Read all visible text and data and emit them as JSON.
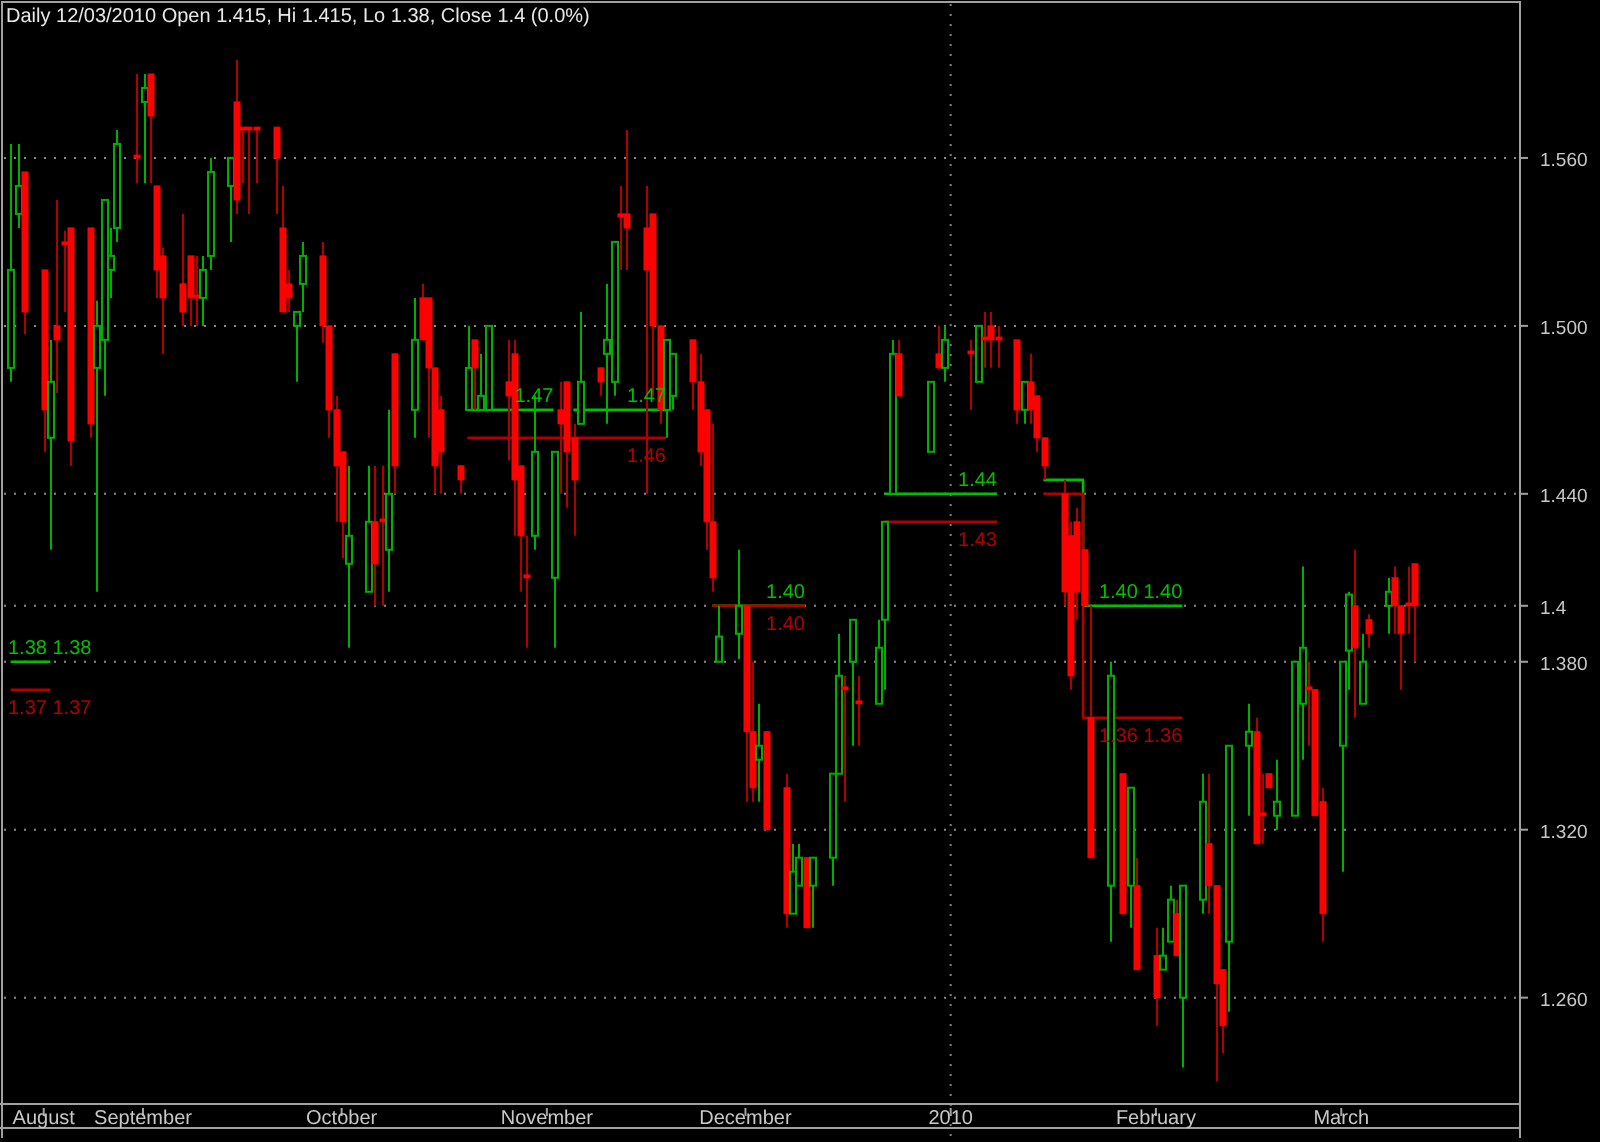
{
  "chart_data": {
    "type": "candlestick",
    "title": "Daily 12/03/2010 Open 1.415, Hi 1.415, Lo 1.38, Close 1.4 (0.0%)",
    "x": [
      "2009-08-12",
      "2009-08-13",
      "2009-08-14",
      "2009-08-17",
      "2009-08-18",
      "2009-08-19",
      "2009-08-20",
      "2009-08-21",
      "2009-08-24",
      "2009-08-25",
      "2009-08-26",
      "2009-08-27",
      "2009-08-28",
      "2009-08-31",
      "2009-09-01",
      "2009-09-02",
      "2009-09-03",
      "2009-09-04",
      "2009-09-07",
      "2009-09-08",
      "2009-09-09",
      "2009-09-10",
      "2009-09-11",
      "2009-09-14",
      "2009-09-15",
      "2009-09-16",
      "2009-09-17",
      "2009-09-18",
      "2009-09-21",
      "2009-09-22",
      "2009-09-23",
      "2009-09-24",
      "2009-09-25",
      "2009-09-28",
      "2009-09-29",
      "2009-09-30",
      "2009-10-01",
      "2009-10-02",
      "2009-10-05",
      "2009-10-06",
      "2009-10-07",
      "2009-10-08",
      "2009-10-09",
      "2009-10-12",
      "2009-10-13",
      "2009-10-14",
      "2009-10-15",
      "2009-10-16",
      "2009-10-19",
      "2009-10-20",
      "2009-10-21",
      "2009-10-22",
      "2009-10-23",
      "2009-10-26",
      "2009-10-27",
      "2009-10-28",
      "2009-10-29",
      "2009-10-30",
      "2009-11-02",
      "2009-11-03",
      "2009-11-04",
      "2009-11-05",
      "2009-11-06",
      "2009-11-09",
      "2009-11-10",
      "2009-11-11",
      "2009-11-12",
      "2009-11-13",
      "2009-11-16",
      "2009-11-17",
      "2009-11-18",
      "2009-11-19",
      "2009-11-20",
      "2009-11-23",
      "2009-11-24",
      "2009-11-25",
      "2009-11-26",
      "2009-11-27",
      "2009-11-30",
      "2009-12-01",
      "2009-12-02",
      "2009-12-03",
      "2009-12-04",
      "2009-12-07",
      "2009-12-08",
      "2009-12-09",
      "2009-12-10",
      "2009-12-11",
      "2009-12-14",
      "2009-12-15",
      "2009-12-16",
      "2009-12-17",
      "2009-12-18",
      "2009-12-21",
      "2009-12-22",
      "2009-12-23",
      "2009-12-24",
      "2009-12-29",
      "2009-12-30",
      "2009-12-31",
      "2010-01-04",
      "2010-01-05",
      "2010-01-06",
      "2010-01-07",
      "2010-01-08",
      "2010-01-11",
      "2010-01-12",
      "2010-01-13",
      "2010-01-14",
      "2010-01-15",
      "2010-01-18",
      "2010-01-19",
      "2010-01-20",
      "2010-01-21",
      "2010-01-22",
      "2010-01-25",
      "2010-01-27",
      "2010-01-28",
      "2010-01-29",
      "2010-02-01",
      "2010-02-02",
      "2010-02-03",
      "2010-02-04",
      "2010-02-05",
      "2010-02-08",
      "2010-02-09",
      "2010-02-10",
      "2010-02-11",
      "2010-02-12",
      "2010-02-15",
      "2010-02-16",
      "2010-02-17",
      "2010-02-18",
      "2010-02-19",
      "2010-02-22",
      "2010-02-23",
      "2010-02-24",
      "2010-02-25",
      "2010-02-26",
      "2010-03-01",
      "2010-03-02",
      "2010-03-03",
      "2010-03-04",
      "2010-03-05",
      "2010-03-08",
      "2010-03-09",
      "2010-03-10",
      "2010-03-11",
      "2010-03-12"
    ],
    "ohlc": [
      [
        1.485,
        1.565,
        1.48,
        1.52
      ],
      [
        1.54,
        1.565,
        1.535,
        1.55
      ],
      [
        1.555,
        1.555,
        1.497,
        1.505
      ],
      [
        1.52,
        1.52,
        1.455,
        1.47
      ],
      [
        1.46,
        1.495,
        1.42,
        1.48
      ],
      [
        1.5,
        1.545,
        1.476,
        1.495
      ],
      [
        1.53,
        1.534,
        1.505,
        1.529
      ],
      [
        1.535,
        1.535,
        1.45,
        1.459
      ],
      [
        1.535,
        1.535,
        1.46,
        1.465
      ],
      [
        1.485,
        1.509,
        1.405,
        1.5
      ],
      [
        1.495,
        1.545,
        1.475,
        1.545
      ],
      [
        1.52,
        1.535,
        1.51,
        1.525
      ],
      [
        1.535,
        1.57,
        1.53,
        1.565
      ],
      [
        1.561,
        1.59,
        1.551,
        1.56
      ],
      [
        1.58,
        1.59,
        1.551,
        1.585
      ],
      [
        1.59,
        1.59,
        1.551,
        1.575
      ],
      [
        1.55,
        1.55,
        1.51,
        1.52
      ],
      [
        1.525,
        1.528,
        1.49,
        1.51
      ],
      [
        1.515,
        1.54,
        1.5,
        1.505
      ],
      [
        1.525,
        1.525,
        1.5,
        1.51
      ],
      [
        1.511,
        1.525,
        1.5,
        1.51
      ],
      [
        1.51,
        1.525,
        1.5,
        1.52
      ],
      [
        1.525,
        1.56,
        1.52,
        1.555
      ],
      [
        1.55,
        1.56,
        1.53,
        1.56
      ],
      [
        1.58,
        1.595,
        1.54,
        1.545
      ],
      [
        1.571,
        1.571,
        1.551,
        1.57
      ],
      [
        1.571,
        1.571,
        1.54,
        1.57
      ],
      [
        1.571,
        1.571,
        1.551,
        1.57
      ],
      [
        1.571,
        1.571,
        1.54,
        1.56
      ],
      [
        1.535,
        1.55,
        1.505,
        1.505
      ],
      [
        1.515,
        1.52,
        1.505,
        1.51
      ],
      [
        1.5,
        1.505,
        1.48,
        1.505
      ],
      [
        1.515,
        1.53,
        1.505,
        1.525
      ],
      [
        1.525,
        1.53,
        1.494,
        1.5
      ],
      [
        1.5,
        1.5,
        1.46,
        1.47
      ],
      [
        1.47,
        1.475,
        1.43,
        1.45
      ],
      [
        1.455,
        1.455,
        1.417,
        1.43
      ],
      [
        1.415,
        1.45,
        1.385,
        1.425
      ],
      [
        1.405,
        1.45,
        1.405,
        1.43
      ],
      [
        1.43,
        1.45,
        1.4,
        1.415
      ],
      [
        1.431,
        1.45,
        1.4,
        1.43
      ],
      [
        1.42,
        1.47,
        1.405,
        1.44
      ],
      [
        1.49,
        1.49,
        1.44,
        1.45
      ],
      [
        1.47,
        1.51,
        1.46,
        1.495
      ],
      [
        1.51,
        1.515,
        1.495,
        1.495
      ],
      [
        1.51,
        1.51,
        1.46,
        1.485
      ],
      [
        1.485,
        1.485,
        1.44,
        1.45
      ],
      [
        1.47,
        1.475,
        1.44,
        1.455
      ],
      [
        1.45,
        1.45,
        1.44,
        1.445
      ],
      [
        1.47,
        1.5,
        1.47,
        1.485
      ],
      [
        1.495,
        1.495,
        1.47,
        1.485
      ],
      [
        1.47,
        1.49,
        1.47,
        1.475
      ],
      [
        1.47,
        1.5,
        1.47,
        1.5
      ],
      [
        1.48,
        1.495,
        1.452,
        1.475
      ],
      [
        1.49,
        1.495,
        1.425,
        1.445
      ],
      [
        1.45,
        1.45,
        1.405,
        1.425
      ],
      [
        1.411,
        1.425,
        1.385,
        1.41
      ],
      [
        1.425,
        1.475,
        1.42,
        1.455
      ],
      [
        1.41,
        1.455,
        1.385,
        1.455
      ],
      [
        1.47,
        1.48,
        1.44,
        1.465
      ],
      [
        1.48,
        1.48,
        1.435,
        1.455
      ],
      [
        1.46,
        1.465,
        1.425,
        1.445
      ],
      [
        1.465,
        1.505,
        1.465,
        1.48
      ],
      [
        1.485,
        1.485,
        1.475,
        1.48
      ],
      [
        1.49,
        1.515,
        1.465,
        1.495
      ],
      [
        1.48,
        1.53,
        1.475,
        1.53
      ],
      [
        1.54,
        1.55,
        1.52,
        1.539
      ],
      [
        1.54,
        1.57,
        1.52,
        1.535
      ],
      [
        1.535,
        1.55,
        1.44,
        1.52
      ],
      [
        1.54,
        1.54,
        1.475,
        1.5
      ],
      [
        1.5,
        1.5,
        1.465,
        1.47
      ],
      [
        1.47,
        1.495,
        1.46,
        1.495
      ],
      [
        1.475,
        1.49,
        1.47,
        1.49
      ],
      [
        1.495,
        1.495,
        1.47,
        1.48
      ],
      [
        1.48,
        1.49,
        1.45,
        1.455
      ],
      [
        1.47,
        1.47,
        1.42,
        1.43
      ],
      [
        1.43,
        1.465,
        1.405,
        1.41
      ],
      [
        1.38,
        1.4,
        1.38,
        1.389
      ],
      [
        1.39,
        1.42,
        1.381,
        1.4
      ],
      [
        1.4,
        1.4,
        1.33,
        1.355
      ],
      [
        1.355,
        1.38,
        1.33,
        1.335
      ],
      [
        1.345,
        1.365,
        1.33,
        1.35
      ],
      [
        1.355,
        1.355,
        1.32,
        1.32
      ],
      [
        1.335,
        1.34,
        1.285,
        1.29
      ],
      [
        1.29,
        1.315,
        1.29,
        1.305
      ],
      [
        1.3,
        1.315,
        1.3,
        1.31
      ],
      [
        1.31,
        1.31,
        1.285,
        1.285
      ],
      [
        1.3,
        1.31,
        1.285,
        1.31
      ],
      [
        1.31,
        1.34,
        1.3,
        1.34
      ],
      [
        1.34,
        1.39,
        1.34,
        1.375
      ],
      [
        1.371,
        1.375,
        1.33,
        1.37
      ],
      [
        1.38,
        1.395,
        1.35,
        1.395
      ],
      [
        1.366,
        1.375,
        1.35,
        1.365
      ],
      [
        1.365,
        1.395,
        1.365,
        1.385
      ],
      [
        1.395,
        1.43,
        1.37,
        1.43
      ],
      [
        1.44,
        1.495,
        1.44,
        1.49
      ],
      [
        1.49,
        1.495,
        1.475,
        1.475
      ],
      [
        1.455,
        1.48,
        1.455,
        1.48
      ],
      [
        1.49,
        1.5,
        1.485,
        1.485
      ],
      [
        1.485,
        1.5,
        1.48,
        1.495
      ],
      [
        1.491,
        1.495,
        1.47,
        1.49
      ],
      [
        1.48,
        1.5,
        1.48,
        1.5
      ],
      [
        1.496,
        1.505,
        1.485,
        1.495
      ],
      [
        1.5,
        1.505,
        1.485,
        1.495
      ],
      [
        1.496,
        1.5,
        1.485,
        1.495
      ],
      [
        1.495,
        1.495,
        1.465,
        1.47
      ],
      [
        1.47,
        1.48,
        1.465,
        1.48
      ],
      [
        1.48,
        1.49,
        1.465,
        1.47
      ],
      [
        1.475,
        1.475,
        1.455,
        1.46
      ],
      [
        1.46,
        1.46,
        1.445,
        1.45
      ],
      [
        1.44,
        1.445,
        1.4,
        1.405
      ],
      [
        1.425,
        1.43,
        1.37,
        1.375
      ],
      [
        1.43,
        1.435,
        1.395,
        1.405
      ],
      [
        1.42,
        1.42,
        1.4,
        1.4
      ],
      [
        1.36,
        1.4,
        1.31,
        1.31
      ],
      [
        1.3,
        1.38,
        1.28,
        1.375
      ],
      [
        1.34,
        1.34,
        1.29,
        1.29
      ],
      [
        1.3,
        1.335,
        1.285,
        1.335
      ],
      [
        1.3,
        1.31,
        1.27,
        1.27
      ],
      [
        1.275,
        1.285,
        1.25,
        1.26
      ],
      [
        1.27,
        1.285,
        1.27,
        1.275
      ],
      [
        1.28,
        1.3,
        1.28,
        1.295
      ],
      [
        1.29,
        1.295,
        1.275,
        1.275
      ],
      [
        1.26,
        1.3,
        1.235,
        1.3
      ],
      [
        1.295,
        1.34,
        1.29,
        1.33
      ],
      [
        1.315,
        1.34,
        1.29,
        1.3
      ],
      [
        1.3,
        1.3,
        1.23,
        1.265
      ],
      [
        1.27,
        1.27,
        1.24,
        1.25
      ],
      [
        1.28,
        1.35,
        1.255,
        1.35
      ],
      [
        1.35,
        1.365,
        1.325,
        1.355
      ],
      [
        1.355,
        1.36,
        1.315,
        1.315
      ],
      [
        1.326,
        1.34,
        1.315,
        1.325
      ],
      [
        1.34,
        1.34,
        1.335,
        1.335
      ],
      [
        1.325,
        1.345,
        1.32,
        1.33
      ],
      [
        1.325,
        1.38,
        1.325,
        1.38
      ],
      [
        1.365,
        1.414,
        1.345,
        1.385
      ],
      [
        1.371,
        1.38,
        1.35,
        1.37
      ],
      [
        1.37,
        1.37,
        1.325,
        1.325
      ],
      [
        1.33,
        1.335,
        1.28,
        1.29
      ],
      [
        1.35,
        1.38,
        1.305,
        1.38
      ],
      [
        1.384,
        1.405,
        1.37,
        1.404
      ],
      [
        1.4,
        1.42,
        1.36,
        1.385
      ],
      [
        1.365,
        1.39,
        1.365,
        1.38
      ],
      [
        1.395,
        1.397,
        1.385,
        1.39
      ],
      [
        1.4,
        1.41,
        1.39,
        1.405
      ],
      [
        1.41,
        1.414,
        1.39,
        1.4
      ],
      [
        1.4,
        1.4,
        1.37,
        1.39
      ],
      [
        1.401,
        1.414,
        1.39,
        1.4
      ],
      [
        1.415,
        1.415,
        1.38,
        1.4
      ]
    ],
    "series": [
      {
        "type": "line",
        "color": "#00c000",
        "x": [
          "2009-08-12",
          "2009-08-18",
          "2009-08-19",
          "2009-10-20",
          "2009-11-02",
          "2009-11-03",
          "2009-11-05",
          "2009-11-19",
          "2009-11-20",
          "2009-11-26",
          "2009-12-10",
          "2009-12-11",
          "2009-12-22",
          "2010-01-08",
          "2010-01-11",
          "2010-01-15",
          "2010-01-21",
          "2010-01-21",
          "2010-02-05"
        ],
        "values": [
          1.38,
          1.38,
          null,
          1.47,
          1.47,
          null,
          1.47,
          1.47,
          null,
          1.4,
          1.4,
          null,
          1.44,
          1.44,
          null,
          1.445,
          1.445,
          1.4,
          1.4
        ],
        "value_labels": [
          null,
          "1.38 1.38",
          null,
          null,
          "1.47",
          null,
          null,
          "1.47",
          null,
          null,
          "1.40",
          null,
          null,
          "1.44",
          null,
          null,
          null,
          null,
          "1.40 1.40"
        ]
      },
      {
        "type": "line",
        "color": "#b00000",
        "x": [
          "2009-08-12",
          "2009-08-18",
          "2009-08-19",
          "2009-10-20",
          "2009-11-19",
          "2009-11-20",
          "2009-11-26",
          "2009-12-10",
          "2009-12-11",
          "2009-12-22",
          "2010-01-08",
          "2010-01-11",
          "2010-01-15",
          "2010-01-21",
          "2010-01-21",
          "2010-02-05"
        ],
        "values": [
          1.37,
          1.37,
          null,
          1.46,
          1.46,
          null,
          1.4,
          1.4,
          null,
          1.43,
          1.43,
          null,
          1.44,
          1.44,
          1.36,
          1.36
        ],
        "value_labels": [
          null,
          "1.37 1.37",
          null,
          null,
          "1.46",
          null,
          null,
          "1.40",
          null,
          null,
          "1.43",
          null,
          null,
          null,
          null,
          "1.36 1.36"
        ]
      }
    ],
    "xlim": [
      "2009-08-11",
      "2010-03-28"
    ],
    "xticks": [
      {
        "value": "2009-08-17",
        "label": "August"
      },
      {
        "value": "2009-09-01",
        "label": "September"
      },
      {
        "value": "2009-10-01",
        "label": "October"
      },
      {
        "value": "2009-11-01",
        "label": "November"
      },
      {
        "value": "2009-12-01",
        "label": "December"
      },
      {
        "value": "2010-01-01",
        "label": "2010"
      },
      {
        "value": "2010-02-01",
        "label": "February"
      },
      {
        "value": "2010-03-01",
        "label": "March"
      }
    ],
    "ylim": [
      1.222,
      1.615
    ],
    "yticks": [
      {
        "value": 1.26,
        "label": "1.260"
      },
      {
        "value": 1.32,
        "label": "1.320"
      },
      {
        "value": 1.38,
        "label": "1.380"
      },
      {
        "value": 1.4,
        "label": "1.4"
      },
      {
        "value": 1.44,
        "label": "1.440"
      },
      {
        "value": 1.5,
        "label": "1.500"
      },
      {
        "value": 1.56,
        "label": "1.560"
      }
    ],
    "grid": "y",
    "ref_lines": [
      {
        "axis": "x",
        "value": "2010-01-01",
        "color": "#808080",
        "line_style": "dotted"
      }
    ]
  }
}
